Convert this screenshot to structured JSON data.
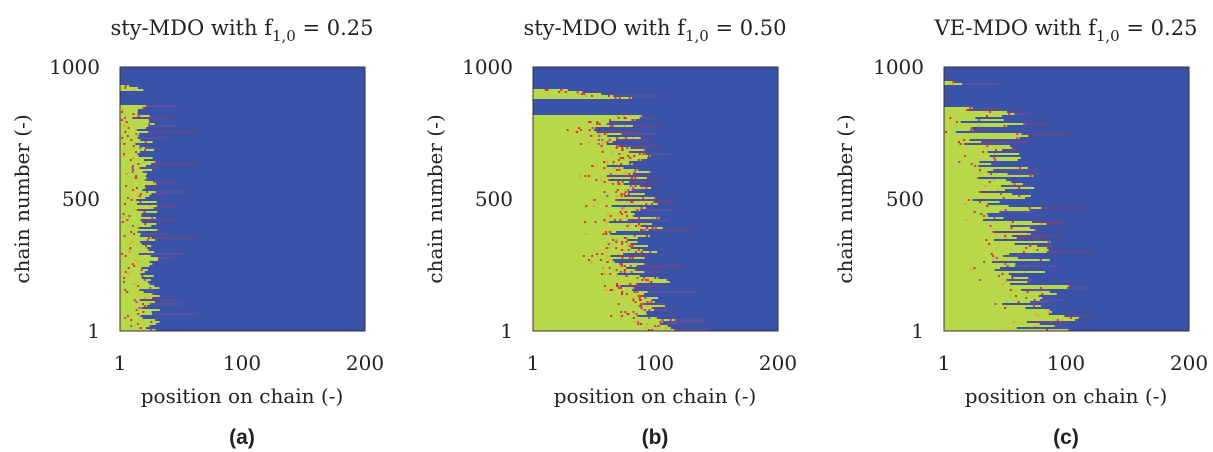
{
  "figure": {
    "colors": {
      "background": "#3a52a8",
      "fill": "#b8d84a",
      "edge_red": "#d8323a",
      "edge_magenta": "#b0488a",
      "orange": "#e8a030"
    }
  },
  "chart_data": [
    {
      "type": "heatmap",
      "panel": "(a)",
      "title_main": "sty-MDO with f",
      "title_sub": "1,0",
      "title_tail": " = 0.25",
      "xlabel": "position on chain (-)",
      "ylabel": "chain number (-)",
      "xlim": [
        1,
        200
      ],
      "ylim": [
        1,
        1000
      ],
      "xticks": [
        "1",
        "100",
        "200"
      ],
      "yticks": [
        "1",
        "500",
        "1000"
      ],
      "band_gap_low": 855,
      "band_gap_high": 900,
      "band_top_low": 910,
      "band_top_high": 935,
      "band_top_edge": 20,
      "front_profile": [
        [
          1,
          26
        ],
        [
          100,
          24
        ],
        [
          200,
          26
        ],
        [
          300,
          24
        ],
        [
          400,
          23
        ],
        [
          500,
          22
        ],
        [
          600,
          23
        ],
        [
          700,
          22
        ],
        [
          800,
          20
        ],
        [
          855,
          18
        ]
      ],
      "front_jitter": 9,
      "red_fraction": 0.08
    },
    {
      "type": "heatmap",
      "panel": "(b)",
      "title_main": "sty-MDO with f",
      "title_sub": "1,0",
      "title_tail": " = 0.50",
      "xlabel": "position on chain (-)",
      "ylabel": "chain number (-)",
      "xlim": [
        1,
        200
      ],
      "ylim": [
        1,
        1000
      ],
      "xticks": [
        "1",
        "100",
        "200"
      ],
      "yticks": [
        "1",
        "500",
        "1000"
      ],
      "band_gap_low": 820,
      "band_gap_high": 865,
      "band_top_low": 880,
      "band_top_high": 915,
      "band_top_edge": 85,
      "front_profile": [
        [
          1,
          105
        ],
        [
          100,
          95
        ],
        [
          200,
          90
        ],
        [
          300,
          85
        ],
        [
          400,
          85
        ],
        [
          500,
          82
        ],
        [
          600,
          78
        ],
        [
          700,
          75
        ],
        [
          800,
          70
        ],
        [
          820,
          68
        ]
      ],
      "front_jitter": 22,
      "red_fraction": 0.22
    },
    {
      "type": "heatmap",
      "panel": "(c)",
      "title_main": "VE-MDO with f",
      "title_sub": "1,0",
      "title_tail": " = 0.25",
      "xlabel": "position on chain (-)",
      "ylabel": "chain number (-)",
      "xlim": [
        1,
        200
      ],
      "ylim": [
        1,
        1000
      ],
      "xticks": [
        "1",
        "100",
        "200"
      ],
      "yticks": [
        "1",
        "500",
        "1000"
      ],
      "band_gap_low": 850,
      "band_gap_high": 915,
      "band_top_low": 930,
      "band_top_high": 950,
      "band_top_edge": 20,
      "front_profile": [
        [
          1,
          85
        ],
        [
          100,
          78
        ],
        [
          200,
          72
        ],
        [
          300,
          62
        ],
        [
          400,
          58
        ],
        [
          500,
          52
        ],
        [
          600,
          48
        ],
        [
          700,
          42
        ],
        [
          800,
          38
        ],
        [
          850,
          35
        ]
      ],
      "front_jitter": 30,
      "red_fraction": 0.12
    }
  ]
}
